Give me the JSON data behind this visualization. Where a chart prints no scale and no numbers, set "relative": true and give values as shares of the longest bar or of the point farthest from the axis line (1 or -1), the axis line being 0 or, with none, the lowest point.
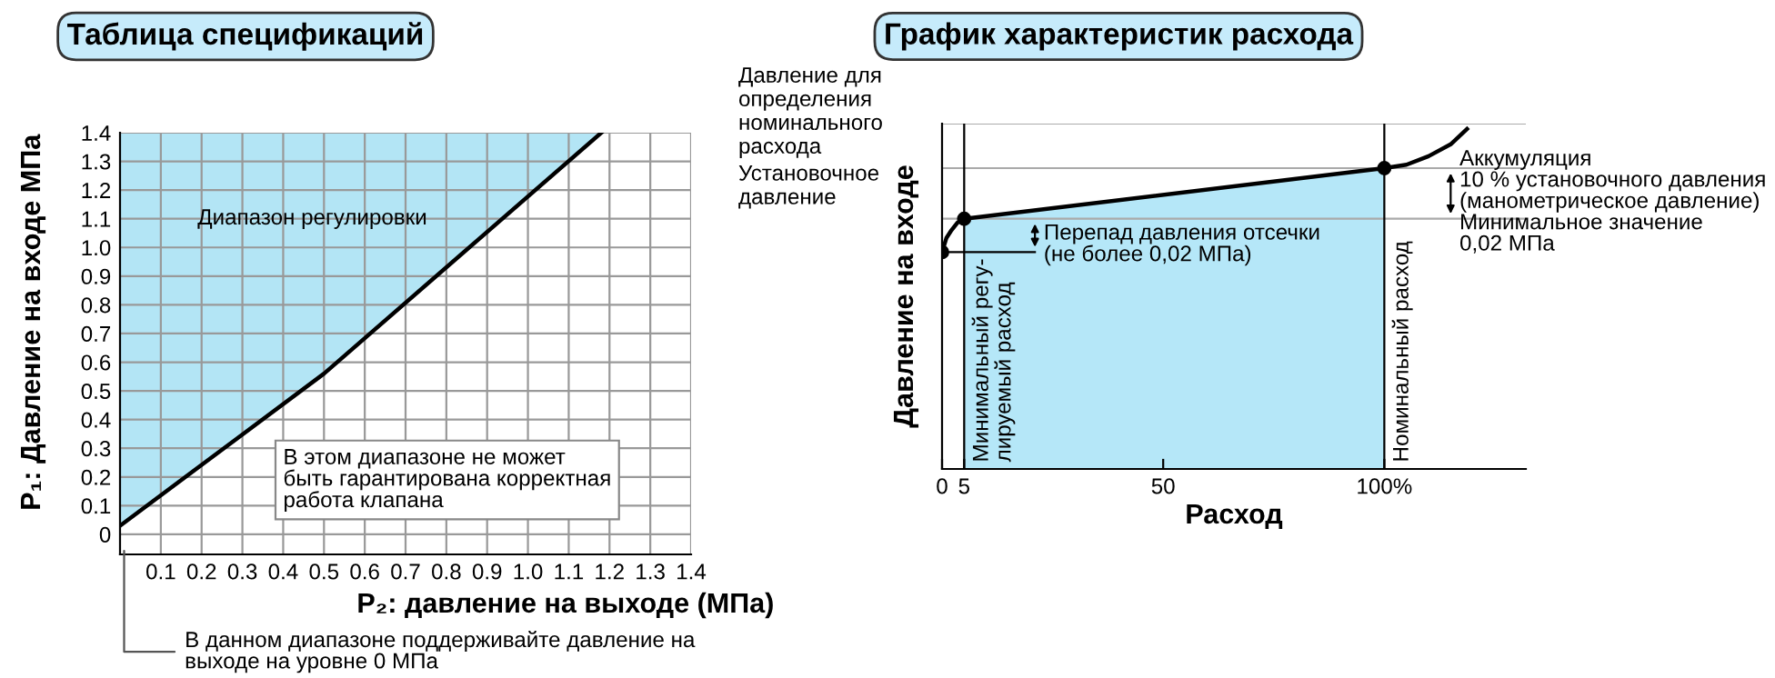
{
  "chart_data": [
    {
      "type": "line",
      "title": "Таблица спецификаций",
      "xlabel": "P₂: давление на выходе (МПа)",
      "ylabel": "P₁: Давление на входе МПа",
      "xlim": [
        0,
        1.4
      ],
      "ylim": [
        -0.07,
        1.4
      ],
      "xticks": [
        0.1,
        0.2,
        0.3,
        0.4,
        0.5,
        0.6,
        0.7,
        0.8,
        0.9,
        {
          "value": 1,
          "label": "1.0"
        },
        1.1,
        1.2,
        1.3,
        1.4
      ],
      "yticks": [
        0,
        0.1,
        0.2,
        0.3,
        0.4,
        0.5,
        0.6,
        0.7,
        0.8,
        0.9,
        {
          "value": 1,
          "label": "1.0"
        },
        1.1,
        1.2,
        1.3,
        1.4
      ],
      "grid": true,
      "series": [
        {
          "color": "#000000",
          "x": [
            0,
            0.5,
            1.18
          ],
          "values": [
            0.03,
            0.56,
            1.4
          ],
          "lower": [
            0.03,
            0.56,
            1.4
          ],
          "upper": [
            1.4,
            1.4,
            1.4
          ]
        }
      ],
      "annotations": [
        "Диапазон регулировки",
        "В этом диапазоне не может\nбыть гарантирована корректная\nработа клапана",
        "В данном диапазоне поддерживайте давление на\nвыходе на уровне 0 МПа"
      ]
    },
    {
      "type": "line",
      "title": "График характеристик расхода",
      "xlabel": "Расход",
      "ylabel": "Давление на входе",
      "relative": true,
      "tick_labels": "x",
      "xlim": [
        0,
        132
      ],
      "xticks": [
        0,
        5,
        50,
        {
          "value": 100,
          "label": "100%"
        }
      ],
      "series": [
        {
          "type": "area",
          "color": "#b5e7f8",
          "x": [
            5,
            100
          ],
          "values": [
            0.736,
            0.885
          ]
        },
        {
          "color": "#000000",
          "x": [
            0,
            1,
            2,
            3.5,
            5,
            100,
            105,
            110,
            115,
            118.7
          ],
          "values": [
            0.638,
            0.68,
            0.7,
            0.725,
            0.736,
            0.885,
            0.895,
            0.92,
            0.955,
            1.0
          ]
        },
        {
          "type": "scatter",
          "color": "#000000",
          "marker": "circle",
          "x": [
            0,
            5,
            100
          ],
          "values": [
            0.638,
            0.736,
            0.885
          ]
        }
      ],
      "ref_lines": [
        {
          "axis": "y",
          "value": 1.016,
          "label": null,
          "color": "#aaaaaa"
        },
        {
          "axis": "y",
          "value": 0.885,
          "label": "Давление для\nопределения\nноминального\nрасхода",
          "color": "#aaaaaa"
        },
        {
          "axis": "y",
          "value": 0.736,
          "label": "Установочное\nдавление",
          "color": "#aaaaaa"
        },
        {
          "axis": "x",
          "value": 5,
          "label": "Минимальный регу-\nлируемый расход",
          "color": "#000000"
        },
        {
          "axis": "x",
          "value": 100,
          "label": "Номинальный расход",
          "color": "#000000"
        }
      ],
      "annotations": [
        "Перепад давления отсечки\n(не более 0,02 МПа)",
        "Аккумуляция\n10 % установочного давления\n(манометрическое давление)\nМинимальное значение\n0,02 МПа"
      ]
    }
  ]
}
